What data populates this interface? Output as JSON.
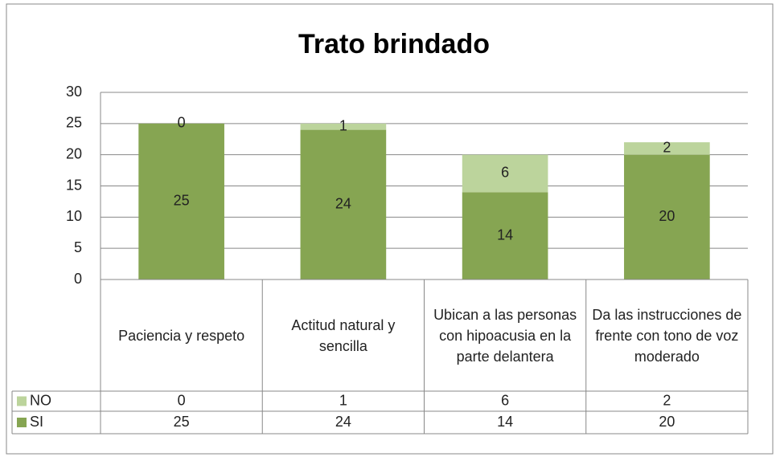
{
  "chart_data": {
    "type": "stacked_bar",
    "title": "Trato brindado",
    "categories": [
      "Paciencia y respeto",
      "Actitud natural y sencilla",
      "Ubican a las personas con hipoacusia en la parte delantera",
      "Da las instrucciones de frente con tono de voz moderado"
    ],
    "series": [
      {
        "name": "SI",
        "color": "#86a552",
        "values": [
          25,
          24,
          14,
          20
        ]
      },
      {
        "name": "NO",
        "color": "#bcd49c",
        "values": [
          0,
          1,
          6,
          2
        ]
      }
    ],
    "ylim": [
      0,
      30
    ],
    "yticks": [
      0,
      5,
      10,
      15,
      20,
      25,
      30
    ],
    "grid": true,
    "data_table": true
  }
}
